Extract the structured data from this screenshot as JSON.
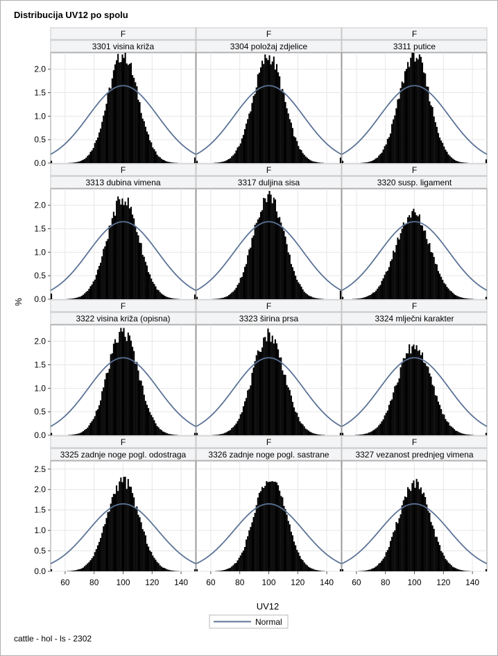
{
  "page": {
    "title": "Distribucija UV12 po spolu",
    "footer": "cattle - hol - ls - 2302"
  },
  "chart_data": {
    "type": "histogram",
    "panel_header": "F",
    "xlabel": "UV12",
    "ylabel": "%",
    "xlim": [
      50,
      150
    ],
    "xticks": [
      60,
      80,
      100,
      120,
      140
    ],
    "legend": {
      "entries": [
        "Normal"
      ],
      "placement": "bottom-center"
    },
    "grid": true,
    "colors": {
      "bars": "#000000",
      "normal_curve": "#5b7396",
      "header_bg": "#f3f4f6",
      "grid": "#e6e6e6"
    },
    "normal_fit": {
      "mean": 100,
      "sd": 24,
      "peak_percent": 1.65
    },
    "rows": [
      {
        "ylim": [
          0,
          2.35
        ],
        "yticks": [
          0.0,
          0.5,
          1.0,
          1.5,
          2.0
        ]
      },
      {
        "ylim": [
          0,
          2.35
        ],
        "yticks": [
          0.0,
          0.5,
          1.0,
          1.5,
          2.0
        ]
      },
      {
        "ylim": [
          0,
          2.35
        ],
        "yticks": [
          0.0,
          0.5,
          1.0,
          1.5,
          2.0
        ]
      },
      {
        "ylim": [
          0,
          2.7
        ],
        "yticks": [
          0.0,
          0.5,
          1.0,
          1.5,
          2.0,
          2.5
        ]
      }
    ],
    "panels": [
      {
        "label": "3301 visina križa",
        "peak": 2.32,
        "center": 100,
        "sd": 10.5,
        "edge_high": 0.12,
        "edge_low": 0.05
      },
      {
        "label": "3304 položaj zdjelice",
        "peak": 2.27,
        "center": 100,
        "sd": 10.8,
        "edge_high": 0.12,
        "edge_low": 0.05
      },
      {
        "label": "3311 putice",
        "peak": 2.32,
        "center": 100,
        "sd": 10.5,
        "edge_high": 0.08,
        "edge_low": 0.05
      },
      {
        "label": "3313 dubina vimena",
        "peak": 2.15,
        "center": 100,
        "sd": 11.0,
        "edge_high": 0.1,
        "edge_low": 0.12
      },
      {
        "label": "3317 duljina sisa",
        "peak": 2.21,
        "center": 100,
        "sd": 10.8,
        "edge_high": 0.18,
        "edge_low": 0.05
      },
      {
        "label": "3320 susp. ligament",
        "peak": 1.83,
        "center": 99,
        "sd": 12.0,
        "edge_high": 0.05,
        "edge_low": 0.05
      },
      {
        "label": "3322 visina križa (opisna)",
        "peak": 2.2,
        "center": 100,
        "sd": 10.8,
        "edge_high": 0.05,
        "edge_low": 0.05
      },
      {
        "label": "3323 širina prsa",
        "peak": 2.15,
        "center": 100,
        "sd": 11.0,
        "edge_high": 0.05,
        "edge_low": 0.05
      },
      {
        "label": "3324 mlječni karakter",
        "peak": 1.9,
        "center": 100,
        "sd": 11.8,
        "edge_high": 0.05,
        "edge_low": 0.05
      },
      {
        "label": "3325 zadnje noge pogl. odostraga",
        "peak": 2.22,
        "center": 100,
        "sd": 11.0,
        "edge_high": 0.05,
        "edge_low": 0.05
      },
      {
        "label": "3326 zadnje noge pogl. sastrane",
        "peak": 2.35,
        "center": 101,
        "sd": 10.8,
        "edge_high": 0.05,
        "edge_low": 0.05
      },
      {
        "label": "3327 vezanost prednjeg vimena",
        "peak": 2.15,
        "center": 100,
        "sd": 11.0,
        "edge_high": 0.05,
        "edge_low": 0.05
      }
    ]
  }
}
